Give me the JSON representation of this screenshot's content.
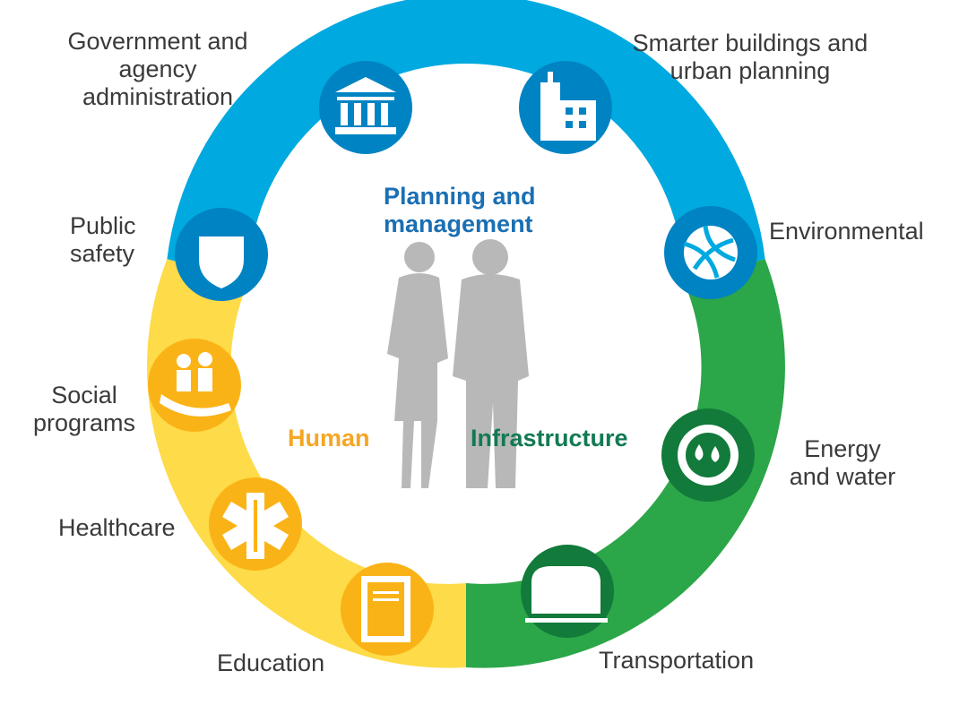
{
  "colors": {
    "planning": "#00a9e0",
    "planning_dark": "#0083c3",
    "human": "#fedb48",
    "human_dark": "#fab317",
    "infrastructure": "#2ba648",
    "infrastructure_dark": "#127a3a",
    "figure": "#b8b8b8",
    "label": "#3a3a3a",
    "planning_text": "#1b6fb3",
    "human_text": "#f5a623",
    "infrastructure_text": "#137a52"
  },
  "center": {
    "planning_line1": "Planning and",
    "planning_line2": "management",
    "human": "Human",
    "infrastructure": "Infrastructure"
  },
  "segments": [
    {
      "key": "government",
      "icon": "government-building-icon",
      "lines": [
        "Government and",
        "agency",
        "administration"
      ]
    },
    {
      "key": "buildings",
      "icon": "smart-building-icon",
      "lines": [
        "Smarter buildings and",
        "urban planning"
      ]
    },
    {
      "key": "environmental",
      "icon": "environment-leaves-icon",
      "lines": [
        "Environmental"
      ]
    },
    {
      "key": "energy",
      "icon": "energy-water-icon",
      "lines": [
        "Energy",
        "and water"
      ]
    },
    {
      "key": "transportation",
      "icon": "train-icon",
      "lines": [
        "Transportation"
      ]
    },
    {
      "key": "education",
      "icon": "book-icon",
      "lines": [
        "Education"
      ]
    },
    {
      "key": "healthcare",
      "icon": "medical-star-icon",
      "lines": [
        "Healthcare"
      ]
    },
    {
      "key": "social",
      "icon": "family-hands-icon",
      "lines": [
        "Social",
        "programs"
      ]
    },
    {
      "key": "safety",
      "icon": "police-badge-icon",
      "lines": [
        "Public",
        "safety"
      ]
    }
  ]
}
